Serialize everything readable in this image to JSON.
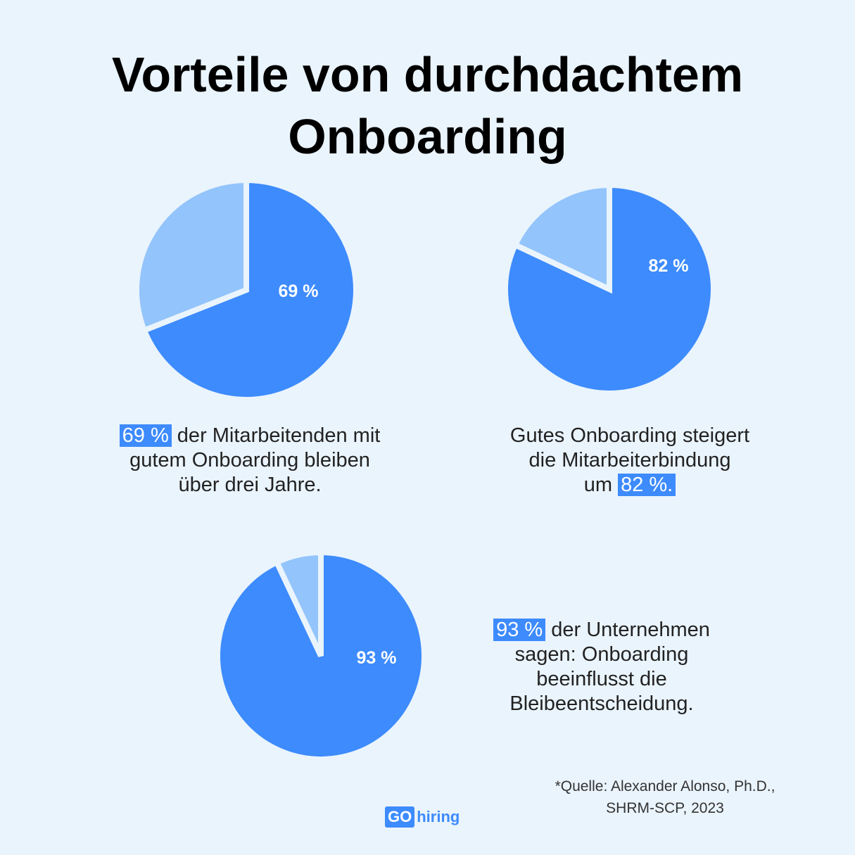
{
  "title": {
    "line1": "Vorteile von durchdachtem",
    "line2": "Onboarding"
  },
  "colors": {
    "primary": "#3d8bfd",
    "secondary": "#93c4fb",
    "background": "#eaf4fd"
  },
  "chart_data": [
    {
      "type": "pie",
      "slices": [
        {
          "value": 69,
          "label": "69 %"
        },
        {
          "value": 31
        }
      ],
      "caption": {
        "highlight": "69 %",
        "line1_rest": " der Mitarbeitenden mit",
        "line2": "gutem Onboarding bleiben",
        "line3": "über drei Jahre."
      }
    },
    {
      "type": "pie",
      "slices": [
        {
          "value": 82,
          "label": "82 %"
        },
        {
          "value": 18
        }
      ],
      "caption": {
        "line1": "Gutes Onboarding steigert",
        "line2": "die Mitarbeiterbindung",
        "line3_prefix": "um ",
        "highlight": "82 %."
      }
    },
    {
      "type": "pie",
      "slices": [
        {
          "value": 93,
          "label": "93 %"
        },
        {
          "value": 7
        }
      ],
      "caption": {
        "highlight": "93 %",
        "line1_rest": " der Unternehmen",
        "line2": "sagen: Onboarding",
        "line3": "beeinflusst die",
        "line4": "Bleibeentscheidung."
      }
    }
  ],
  "source": {
    "line1": "*Quelle: Alexander Alonso, Ph.D.,",
    "line2": "SHRM-SCP, 2023"
  },
  "logo": {
    "go": "GO",
    "hiring": "hiring"
  }
}
